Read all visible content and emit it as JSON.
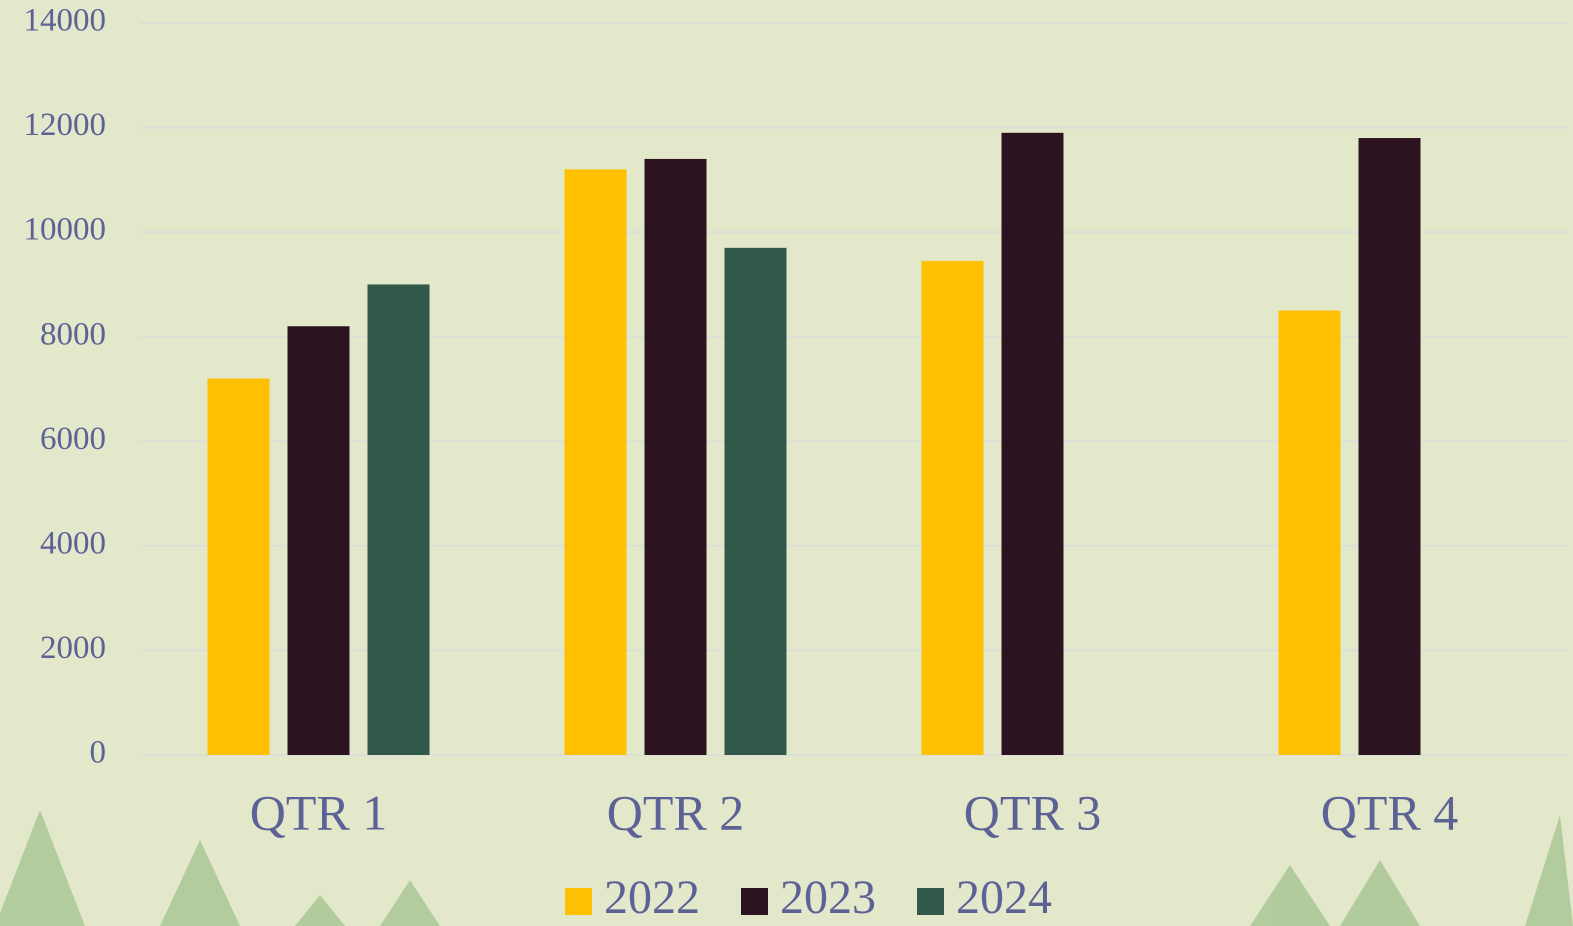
{
  "chart_data": {
    "type": "bar",
    "categories": [
      "QTR 1",
      "QTR 2",
      "QTR 3",
      "QTR 4"
    ],
    "series": [
      {
        "name": "2022",
        "color": "#fec000",
        "values": [
          7200,
          11200,
          9450,
          8500
        ]
      },
      {
        "name": "2023",
        "color": "#2b141f",
        "values": [
          8200,
          11400,
          11900,
          11800
        ]
      },
      {
        "name": "2024",
        "color": "#315848",
        "values": [
          9000,
          9700,
          null,
          null
        ]
      }
    ],
    "ylim": [
      0,
      14000
    ],
    "yticks": [
      0,
      2000,
      4000,
      6000,
      8000,
      10000,
      12000,
      14000
    ],
    "grid": true,
    "legend": "bottom"
  }
}
